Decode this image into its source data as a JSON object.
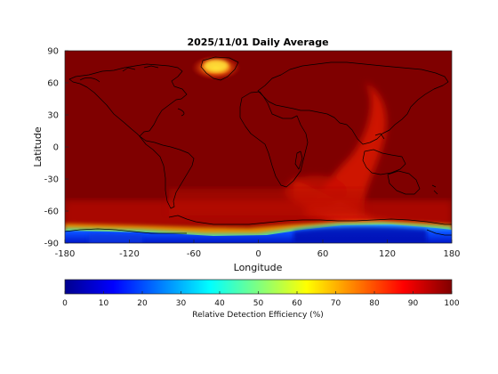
{
  "title": "2025/11/01 Daily Average",
  "x_axis": {
    "label": "Longitude",
    "ticks": [
      "-180",
      "-120",
      "-60",
      "0",
      "60",
      "120",
      "180"
    ]
  },
  "y_axis": {
    "label": "Latitude",
    "ticks": [
      "90",
      "60",
      "30",
      "0",
      "-30",
      "-60",
      "-90"
    ]
  },
  "colorbar": {
    "label": "Relative Detection Efficiency (%)",
    "ticks": [
      "0",
      "10",
      "20",
      "30",
      "40",
      "50",
      "60",
      "70",
      "80",
      "90",
      "100"
    ],
    "colormap": "jet",
    "range": [
      0,
      100
    ]
  },
  "colors": {
    "background_field": "#7f0000",
    "high_latitude_low": "#0000a0",
    "accent_red": "#cc0000"
  },
  "chart_data": {
    "type": "heatmap",
    "title": "2025/11/01 Daily Average",
    "xlabel": "Longitude",
    "ylabel": "Latitude",
    "xlim": [
      -180,
      180
    ],
    "ylim": [
      -90,
      90
    ],
    "z_label": "Relative Detection Efficiency (%)",
    "z_range": [
      0,
      100
    ],
    "dominant_value": 100,
    "regions": [
      {
        "description": "Antarctic low-efficiency band",
        "lon_range": [
          -180,
          180
        ],
        "lat_range": [
          -90,
          -70
        ],
        "value_range": [
          5,
          45
        ]
      },
      {
        "description": "Indian Ocean reduced-efficiency streak",
        "lon_range": [
          40,
          140
        ],
        "lat_range": [
          -70,
          20
        ],
        "value_range": [
          80,
          92
        ]
      },
      {
        "description": "Greenland reduced patch",
        "lon_range": [
          -60,
          -20
        ],
        "lat_range": [
          60,
          85
        ],
        "value_range": [
          70,
          90
        ]
      },
      {
        "description": "South Atlantic / southern ring",
        "lon_range": [
          -120,
          60
        ],
        "lat_range": [
          -75,
          -40
        ],
        "value_range": [
          85,
          95
        ]
      }
    ]
  }
}
